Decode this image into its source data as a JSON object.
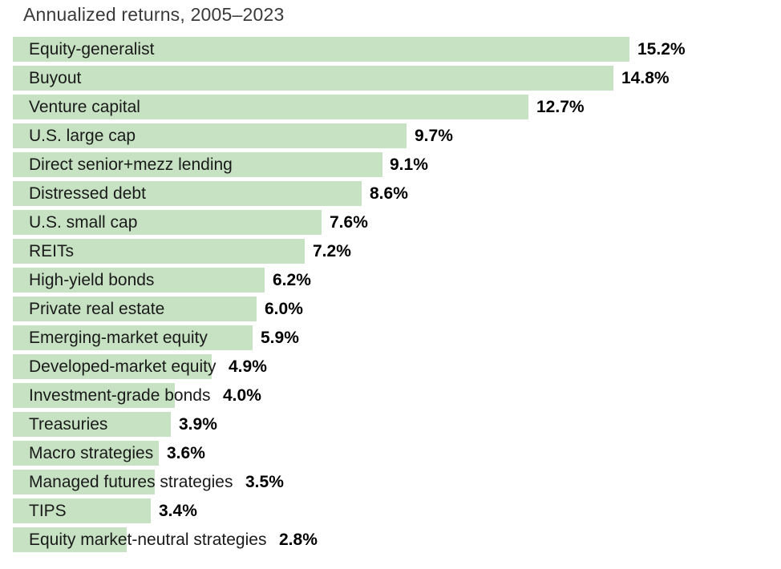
{
  "colors": {
    "bar_fill": "#c7e2c3",
    "title_text": "#3a3a3a",
    "label_text": "#1a1a1a",
    "value_text": "#000000",
    "background": "#ffffff"
  },
  "chart_data": {
    "type": "bar",
    "orientation": "horizontal",
    "title": "Annualized returns, 2005–2023",
    "unit": "%",
    "xlim": [
      0,
      19
    ],
    "grid": false,
    "legend": false,
    "value_labels_position": "end-of-bar",
    "category_labels_position": "inside-bar-left",
    "categories": [
      "Equity-generalist",
      "Buyout",
      "Venture capital",
      "U.S. large cap",
      "Direct senior+mezz lending",
      "Distressed debt",
      "U.S. small cap",
      "REITs",
      "High-yield bonds",
      "Private real estate",
      "Emerging-market equity",
      "Developed-market equity",
      "Investment-grade bonds",
      "Treasuries",
      "Macro strategies",
      "Managed futures strategies",
      "TIPS",
      "Equity market-neutral strategies"
    ],
    "values": [
      15.2,
      14.8,
      12.7,
      9.7,
      9.1,
      8.6,
      7.6,
      7.2,
      6.2,
      6.0,
      5.9,
      4.9,
      4.0,
      3.9,
      3.6,
      3.5,
      3.4,
      2.8
    ],
    "value_labels": [
      "15.2%",
      "14.8%",
      "12.7%",
      "9.7%",
      "9.1%",
      "8.6%",
      "7.6%",
      "7.2%",
      "6.2%",
      "6.0%",
      "5.9%",
      "4.9%",
      "4.0%",
      "3.9%",
      "3.6%",
      "3.5%",
      "3.4%",
      "2.8%"
    ]
  }
}
